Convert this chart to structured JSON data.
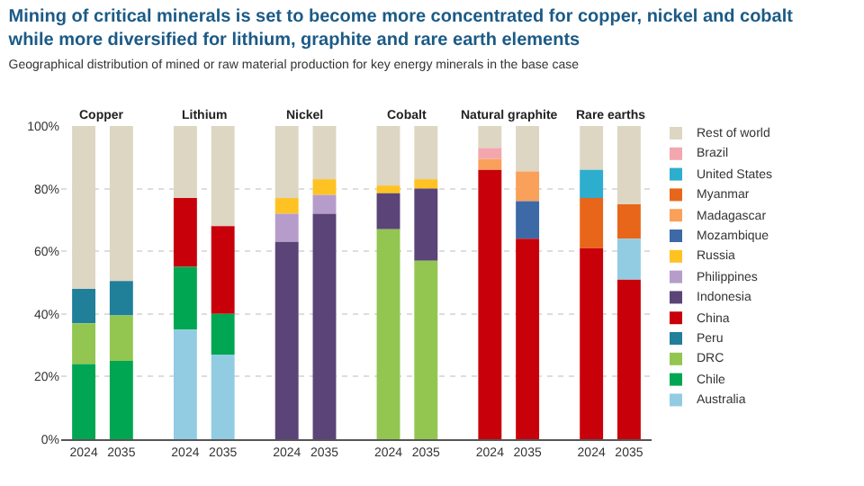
{
  "chart_data": {
    "type": "bar",
    "title": "Mining of critical minerals is set to become more concentrated for copper, nickel and cobalt\nwhile more diversified for lithium, graphite and rare earth elements",
    "subtitle": "Geographical distribution of mined or raw material production for key energy minerals in the base case",
    "annotations": [
      "Copper",
      "Lithium",
      "Nickel",
      "Cobalt",
      "Natural graphite",
      "Rare earths"
    ],
    "categories": [
      "2024",
      "2035",
      "2024",
      "2035",
      "2024",
      "2035",
      "2024",
      "2035",
      "2024",
      "2035",
      "2024",
      "2035"
    ],
    "ylim": [
      0,
      100
    ],
    "yticks": [
      {
        "value": 0,
        "label": "0%"
      },
      {
        "value": 20,
        "label": "20%"
      },
      {
        "value": 40,
        "label": "40%"
      },
      {
        "value": 60,
        "label": "60%"
      },
      {
        "value": 80,
        "label": "80%"
      },
      {
        "value": 100,
        "label": "100%"
      }
    ],
    "grid": "y",
    "legend": "right",
    "series": [
      {
        "name": "Rest of world",
        "color": "#dcd6c3",
        "values": [
          52,
          49.5,
          23,
          32,
          23,
          17,
          19,
          17,
          7,
          14.5,
          14,
          25
        ],
        "base": [
          48,
          50.5,
          77,
          68,
          77,
          83,
          81,
          83,
          93,
          85.5,
          86,
          75
        ]
      },
      {
        "name": "Brazil",
        "color": "#f4a6ae",
        "values": [
          null,
          null,
          null,
          null,
          null,
          null,
          null,
          null,
          3.5,
          null,
          null,
          null
        ],
        "base": [
          null,
          null,
          null,
          null,
          null,
          null,
          null,
          null,
          89.5,
          null,
          null,
          null
        ]
      },
      {
        "name": "United States",
        "color": "#2eaecf",
        "values": [
          null,
          null,
          null,
          null,
          null,
          null,
          null,
          null,
          null,
          null,
          9,
          null
        ],
        "base": [
          null,
          null,
          null,
          null,
          null,
          null,
          null,
          null,
          null,
          null,
          77,
          null
        ]
      },
      {
        "name": "Myanmar",
        "color": "#e8661a",
        "values": [
          null,
          null,
          null,
          null,
          null,
          null,
          null,
          null,
          null,
          null,
          16,
          11
        ],
        "base": [
          null,
          null,
          null,
          null,
          null,
          null,
          null,
          null,
          null,
          null,
          61,
          64
        ]
      },
      {
        "name": "Madagascar",
        "color": "#f9a05a",
        "values": [
          null,
          null,
          null,
          null,
          null,
          null,
          null,
          null,
          3.5,
          9.5,
          null,
          null
        ],
        "base": [
          null,
          null,
          null,
          null,
          null,
          null,
          null,
          null,
          86,
          76,
          null,
          null
        ]
      },
      {
        "name": "Mozambique",
        "color": "#3d6aa6",
        "values": [
          null,
          null,
          null,
          null,
          null,
          null,
          null,
          null,
          null,
          12,
          null,
          null
        ],
        "base": [
          null,
          null,
          null,
          null,
          null,
          null,
          null,
          null,
          null,
          64,
          null,
          null
        ]
      },
      {
        "name": "Russia",
        "color": "#fec322",
        "values": [
          null,
          null,
          null,
          null,
          5,
          5,
          2.5,
          3,
          null,
          null,
          null,
          null
        ],
        "base": [
          null,
          null,
          null,
          null,
          72,
          78,
          78.5,
          80,
          null,
          null,
          null,
          null
        ]
      },
      {
        "name": "Philippines",
        "color": "#b69ccb",
        "values": [
          null,
          null,
          null,
          null,
          9,
          6,
          null,
          null,
          null,
          null,
          null,
          null
        ],
        "base": [
          null,
          null,
          null,
          null,
          63,
          72,
          null,
          null,
          null,
          null,
          null,
          null
        ]
      },
      {
        "name": "Indonesia",
        "color": "#5a4478",
        "values": [
          null,
          null,
          null,
          null,
          63,
          72,
          11.5,
          23,
          null,
          null,
          null,
          null
        ],
        "base": [
          null,
          null,
          null,
          null,
          0,
          0,
          67,
          57,
          null,
          null,
          null,
          null
        ]
      },
      {
        "name": "China",
        "color": "#c8000a",
        "values": [
          null,
          null,
          22,
          28,
          null,
          null,
          null,
          null,
          86,
          64,
          61,
          51
        ],
        "base": [
          null,
          null,
          55,
          40,
          null,
          null,
          null,
          null,
          0,
          0,
          0,
          0
        ]
      },
      {
        "name": "Peru",
        "color": "#207f99",
        "values": [
          11,
          11,
          null,
          null,
          null,
          null,
          null,
          null,
          null,
          null,
          null,
          null
        ],
        "base": [
          37,
          39.5,
          null,
          null,
          null,
          null,
          null,
          null,
          null,
          null,
          null,
          null
        ]
      },
      {
        "name": "DRC",
        "color": "#92c650",
        "values": [
          13,
          14.5,
          null,
          null,
          null,
          null,
          67,
          57,
          null,
          null,
          null,
          null
        ],
        "base": [
          24,
          25,
          null,
          null,
          null,
          null,
          0,
          0,
          null,
          null,
          null,
          null
        ]
      },
      {
        "name": "Chile",
        "color": "#00a651",
        "values": [
          24,
          25,
          20,
          13,
          null,
          null,
          null,
          null,
          null,
          null,
          null,
          null
        ],
        "base": [
          0,
          0,
          35,
          27,
          null,
          null,
          null,
          null,
          null,
          null,
          null,
          null
        ]
      },
      {
        "name": "Australia",
        "color": "#92cce2",
        "values": [
          null,
          null,
          35,
          27,
          null,
          null,
          null,
          null,
          null,
          null,
          null,
          13
        ],
        "base": [
          null,
          null,
          0,
          0,
          null,
          null,
          null,
          null,
          null,
          null,
          null,
          51
        ]
      }
    ]
  }
}
